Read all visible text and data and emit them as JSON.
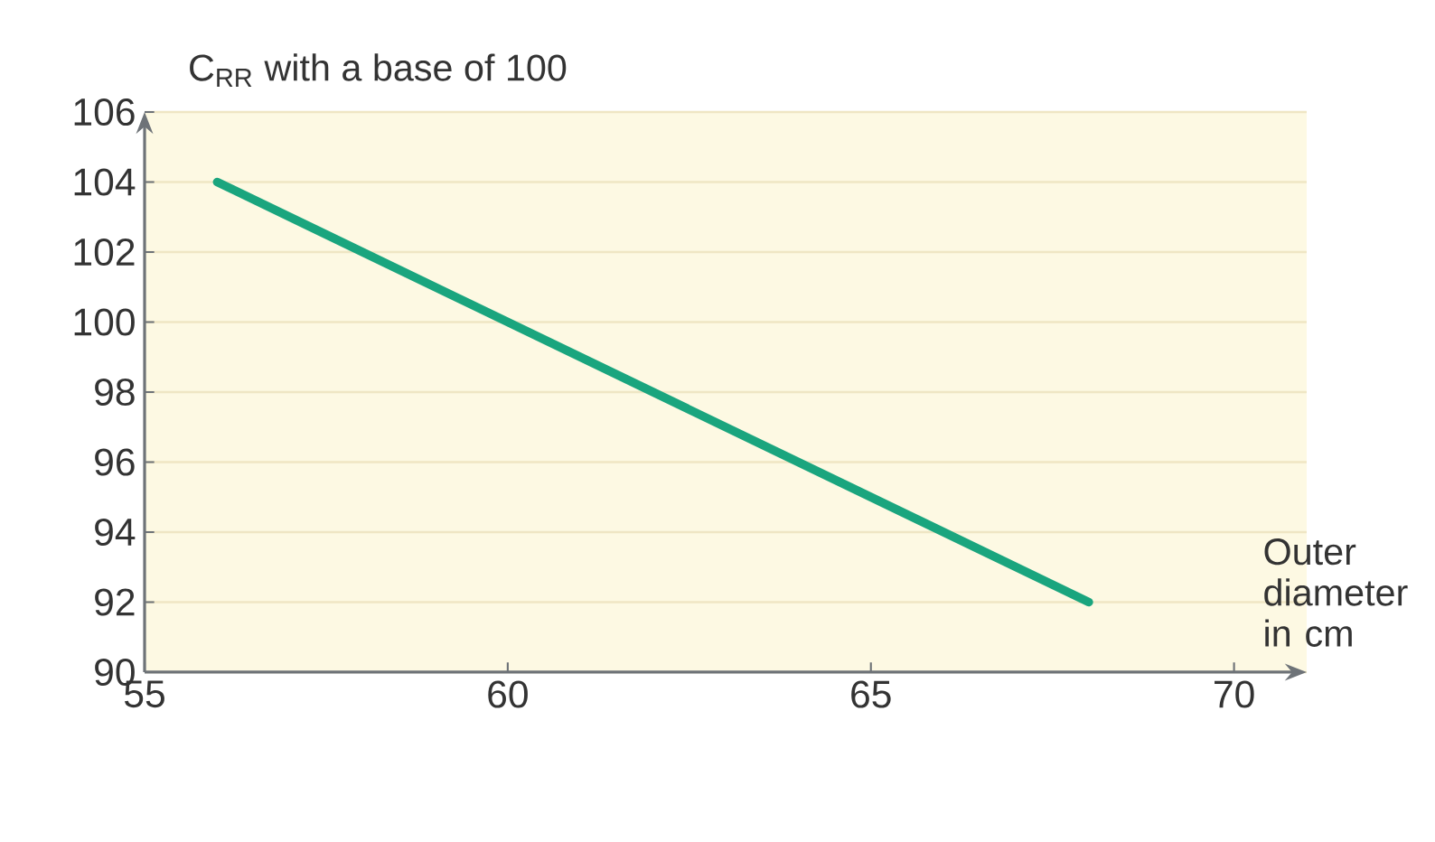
{
  "chart_data": {
    "type": "line",
    "xlabel": "Outer diameter in cm",
    "ylabel": "C$_{RR}$ with a base of 100",
    "x": [
      56,
      68
    ],
    "series": [
      {
        "color": "#1aa57e",
        "values": [
          104,
          92
        ]
      }
    ],
    "xlim": [
      55,
      71
    ],
    "ylim": [
      90,
      106
    ],
    "xticks": [
      55,
      60,
      65,
      70
    ],
    "yticks": [
      90,
      92,
      94,
      96,
      98,
      100,
      102,
      104,
      106
    ],
    "grid": "y"
  }
}
